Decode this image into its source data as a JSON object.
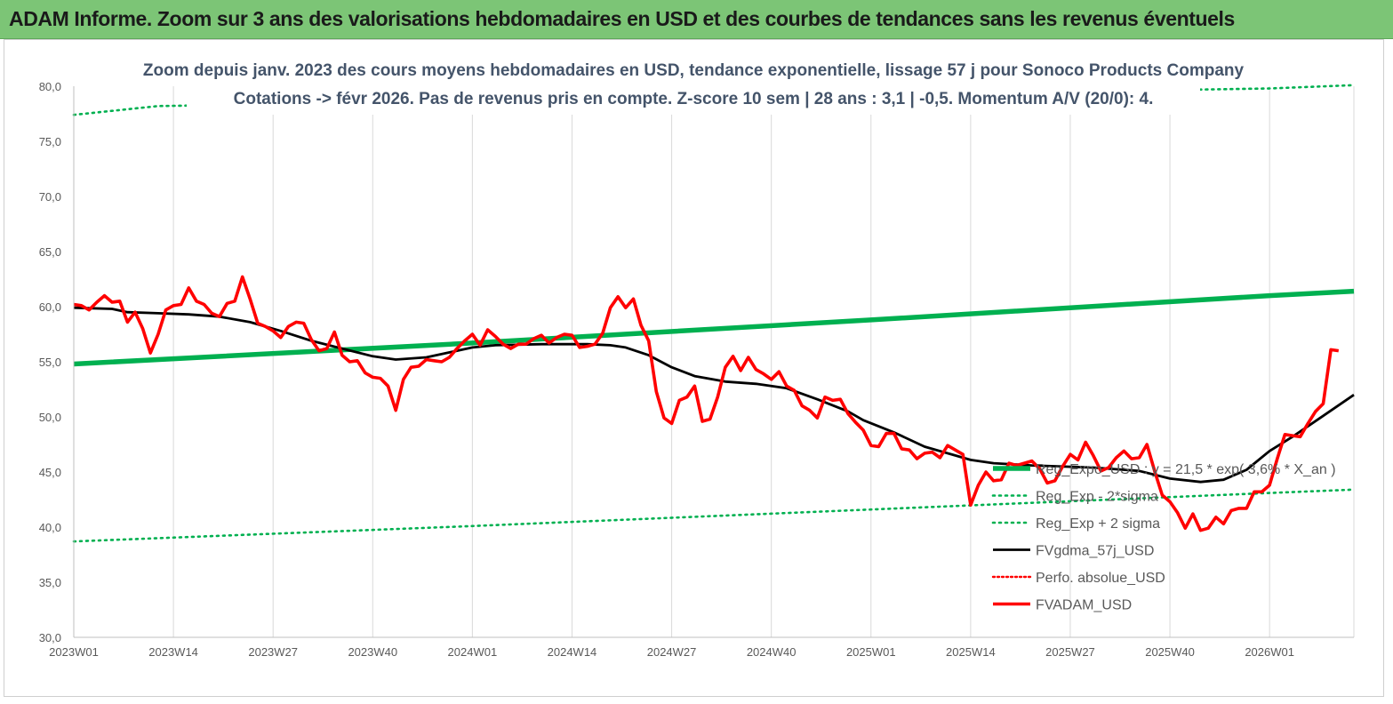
{
  "banner": {
    "title": "ADAM Informe. Zoom sur 3 ans des valorisations hebdomadaires en USD et des courbes de tendances sans les revenus éventuels"
  },
  "colors": {
    "banner": "#7cc576",
    "reg_expo": "#00b050",
    "reg_bands": "#00b050",
    "fvgdma": "#000000",
    "perfo": "#ff0000",
    "fvadam": "#ff0000",
    "grid": "#d9d9d9",
    "title_text": "#44546a"
  },
  "chart_data": {
    "type": "line",
    "title_lines": [
      "Zoom depuis janv. 2023 des cours moyens hebdomadaires en USD, tendance exponentielle, lissage 57 j pour Sonoco Products Company",
      "Cotations -> févr 2026.  Pas de revenus pris en compte. Z-score 10 sem  | 28 ans : 3,1 | -0,5. Momentum A/V (20/0): 4."
    ],
    "x_axis": {
      "unit": "week",
      "first_week": "2023W01",
      "last_week": "2026W12",
      "tick_labels": [
        "2023W01",
        "2023W14",
        "2023W27",
        "2023W40",
        "2024W01",
        "2024W14",
        "2024W27",
        "2024W40",
        "2025W01",
        "2025W14",
        "2025W27",
        "2025W40",
        "2026W01"
      ]
    },
    "y_axis": {
      "min": 30,
      "max": 80,
      "step": 5,
      "tick_labels": [
        "30,0",
        "35,0",
        "40,0",
        "45,0",
        "50,0",
        "55,0",
        "60,0",
        "65,0",
        "70,0",
        "75,0",
        "80,0"
      ]
    },
    "grid": "vertical",
    "legend": {
      "position": "bottom-right",
      "entries": [
        "Reg_Expo_USD : y = 21,5 * exp( 3,6% * X_an )",
        "Reg_Exp - 2*sigma",
        "Reg_Exp + 2 sigma",
        "FVgdma_57j_USD",
        "Perfo. absolue_USD",
        "FVADAM_USD"
      ]
    },
    "series": [
      {
        "name": "Reg_Expo_USD : y = 21,5 * exp( 3,6% * X_an )",
        "style": "thick-solid",
        "points": [
          [
            "2023W01",
            54.8
          ],
          [
            "2024W01",
            56.7
          ],
          [
            "2025W01",
            58.8
          ],
          [
            "2026W01",
            61.0
          ],
          [
            "2026W12",
            61.4
          ]
        ]
      },
      {
        "name": "Reg_Exp - 2*sigma",
        "style": "dotted",
        "points": [
          [
            "2023W01",
            38.7
          ],
          [
            "2024W01",
            40.1
          ],
          [
            "2025W01",
            41.6
          ],
          [
            "2026W01",
            43.1
          ],
          [
            "2026W12",
            43.4
          ]
        ]
      },
      {
        "name": "Reg_Exp + 2 sigma",
        "style": "dotted",
        "points": [
          [
            "2023W01",
            77.4
          ],
          [
            "2023W12",
            78.2
          ],
          [
            "2026W01",
            79.8
          ],
          [
            "2026W12",
            80.1
          ]
        ]
      },
      {
        "name": "FVgdma_57j_USD",
        "style": "solid",
        "points": [
          [
            "2023W01",
            59.9
          ],
          [
            "2023W06",
            59.8
          ],
          [
            "2023W08",
            59.5
          ],
          [
            "2023W12",
            59.4
          ],
          [
            "2023W16",
            59.3
          ],
          [
            "2023W20",
            59.1
          ],
          [
            "2023W24",
            58.6
          ],
          [
            "2023W28",
            57.8
          ],
          [
            "2023W32",
            56.9
          ],
          [
            "2023W36",
            56.2
          ],
          [
            "2023W40",
            55.5
          ],
          [
            "2023W43",
            55.2
          ],
          [
            "2023W47",
            55.4
          ],
          [
            "2023W51",
            56.0
          ],
          [
            "2024W01",
            56.3
          ],
          [
            "2024W04",
            56.5
          ],
          [
            "2024W10",
            56.6
          ],
          [
            "2024W16",
            56.6
          ],
          [
            "2024W19",
            56.5
          ],
          [
            "2024W21",
            56.3
          ],
          [
            "2024W24",
            55.6
          ],
          [
            "2024W27",
            54.5
          ],
          [
            "2024W30",
            53.7
          ],
          [
            "2024W34",
            53.2
          ],
          [
            "2024W38",
            53.0
          ],
          [
            "2024W42",
            52.6
          ],
          [
            "2024W46",
            51.6
          ],
          [
            "2024W50",
            50.5
          ],
          [
            "2024W52",
            49.7
          ],
          [
            "2025W04",
            48.6
          ],
          [
            "2025W08",
            47.3
          ],
          [
            "2025W12",
            46.5
          ],
          [
            "2025W14",
            46.1
          ],
          [
            "2025W17",
            45.8
          ],
          [
            "2025W22",
            45.6
          ],
          [
            "2025W30",
            45.4
          ],
          [
            "2025W36",
            45.1
          ],
          [
            "2025W40",
            44.4
          ],
          [
            "2025W44",
            44.1
          ],
          [
            "2025W47",
            44.3
          ],
          [
            "2025W50",
            45.2
          ],
          [
            "2026W01",
            46.9
          ],
          [
            "2026W04",
            48.2
          ],
          [
            "2026W08",
            50.1
          ],
          [
            "2026W12",
            52.0
          ]
        ]
      },
      {
        "name": "Perfo. absolue_USD",
        "style": "dotted",
        "points": []
      },
      {
        "name": "FVADAM_USD",
        "style": "thick-solid",
        "points": [
          [
            "2023W01",
            60.2
          ],
          [
            "2023W02",
            60.1
          ],
          [
            "2023W03",
            59.7
          ],
          [
            "2023W04",
            60.4
          ],
          [
            "2023W05",
            61.0
          ],
          [
            "2023W06",
            60.4
          ],
          [
            "2023W07",
            60.5
          ],
          [
            "2023W08",
            58.6
          ],
          [
            "2023W09",
            59.5
          ],
          [
            "2023W10",
            58.0
          ],
          [
            "2023W11",
            55.8
          ],
          [
            "2023W12",
            57.5
          ],
          [
            "2023W13",
            59.7
          ],
          [
            "2023W14",
            60.1
          ],
          [
            "2023W15",
            60.2
          ],
          [
            "2023W16",
            61.7
          ],
          [
            "2023W17",
            60.5
          ],
          [
            "2023W18",
            60.2
          ],
          [
            "2023W19",
            59.4
          ],
          [
            "2023W20",
            59.1
          ],
          [
            "2023W21",
            60.3
          ],
          [
            "2023W22",
            60.5
          ],
          [
            "2023W23",
            62.7
          ],
          [
            "2023W24",
            60.7
          ],
          [
            "2023W25",
            58.5
          ],
          [
            "2023W26",
            58.2
          ],
          [
            "2023W27",
            57.8
          ],
          [
            "2023W28",
            57.2
          ],
          [
            "2023W29",
            58.2
          ],
          [
            "2023W30",
            58.6
          ],
          [
            "2023W31",
            58.5
          ],
          [
            "2023W32",
            57.0
          ],
          [
            "2023W33",
            56.0
          ],
          [
            "2023W34",
            56.2
          ],
          [
            "2023W35",
            57.7
          ],
          [
            "2023W36",
            55.6
          ],
          [
            "2023W37",
            55.0
          ],
          [
            "2023W38",
            55.1
          ],
          [
            "2023W39",
            54.0
          ],
          [
            "2023W40",
            53.6
          ],
          [
            "2023W41",
            53.5
          ],
          [
            "2023W42",
            52.8
          ],
          [
            "2023W43",
            50.6
          ],
          [
            "2023W44",
            53.4
          ],
          [
            "2023W45",
            54.5
          ],
          [
            "2023W46",
            54.6
          ],
          [
            "2023W47",
            55.2
          ],
          [
            "2023W48",
            55.1
          ],
          [
            "2023W49",
            55.0
          ],
          [
            "2023W50",
            55.4
          ],
          [
            "2023W51",
            56.2
          ],
          [
            "2023W52",
            56.9
          ],
          [
            "2024W01",
            57.5
          ],
          [
            "2024W02",
            56.5
          ],
          [
            "2024W03",
            57.9
          ],
          [
            "2024W04",
            57.3
          ],
          [
            "2024W05",
            56.6
          ],
          [
            "2024W06",
            56.2
          ],
          [
            "2024W07",
            56.6
          ],
          [
            "2024W08",
            56.6
          ],
          [
            "2024W09",
            57.1
          ],
          [
            "2024W10",
            57.4
          ],
          [
            "2024W11",
            56.7
          ],
          [
            "2024W12",
            57.2
          ],
          [
            "2024W13",
            57.5
          ],
          [
            "2024W14",
            57.4
          ],
          [
            "2024W15",
            56.3
          ],
          [
            "2024W16",
            56.4
          ],
          [
            "2024W17",
            56.6
          ],
          [
            "2024W18",
            57.6
          ],
          [
            "2024W19",
            59.9
          ],
          [
            "2024W20",
            60.9
          ],
          [
            "2024W21",
            59.9
          ],
          [
            "2024W22",
            60.7
          ],
          [
            "2024W23",
            58.3
          ],
          [
            "2024W24",
            56.9
          ],
          [
            "2024W25",
            52.3
          ],
          [
            "2024W26",
            49.9
          ],
          [
            "2024W27",
            49.4
          ],
          [
            "2024W28",
            51.5
          ],
          [
            "2024W29",
            51.8
          ],
          [
            "2024W30",
            52.8
          ],
          [
            "2024W31",
            49.6
          ],
          [
            "2024W32",
            49.8
          ],
          [
            "2024W33",
            51.8
          ],
          [
            "2024W34",
            54.5
          ],
          [
            "2024W35",
            55.5
          ],
          [
            "2024W36",
            54.2
          ],
          [
            "2024W37",
            55.4
          ],
          [
            "2024W38",
            54.3
          ],
          [
            "2024W39",
            53.9
          ],
          [
            "2024W40",
            53.4
          ],
          [
            "2024W41",
            54.1
          ],
          [
            "2024W42",
            52.8
          ],
          [
            "2024W43",
            52.4
          ],
          [
            "2024W44",
            51.0
          ],
          [
            "2024W45",
            50.6
          ],
          [
            "2024W46",
            49.9
          ],
          [
            "2024W47",
            51.8
          ],
          [
            "2024W48",
            51.5
          ],
          [
            "2024W49",
            51.6
          ],
          [
            "2024W50",
            50.3
          ],
          [
            "2024W51",
            49.5
          ],
          [
            "2024W52",
            48.8
          ],
          [
            "2025W01",
            47.4
          ],
          [
            "2025W02",
            47.3
          ],
          [
            "2025W03",
            48.5
          ],
          [
            "2025W04",
            48.5
          ],
          [
            "2025W05",
            47.1
          ],
          [
            "2025W06",
            47.0
          ],
          [
            "2025W07",
            46.2
          ],
          [
            "2025W08",
            46.7
          ],
          [
            "2025W09",
            46.8
          ],
          [
            "2025W10",
            46.3
          ],
          [
            "2025W11",
            47.4
          ],
          [
            "2025W12",
            47.0
          ],
          [
            "2025W13",
            46.6
          ],
          [
            "2025W14",
            42.0
          ],
          [
            "2025W15",
            43.8
          ],
          [
            "2025W16",
            45.0
          ],
          [
            "2025W17",
            44.2
          ],
          [
            "2025W18",
            44.3
          ],
          [
            "2025W19",
            45.8
          ],
          [
            "2025W20",
            45.6
          ],
          [
            "2025W21",
            45.8
          ],
          [
            "2025W22",
            46.0
          ],
          [
            "2025W23",
            45.3
          ],
          [
            "2025W24",
            44.0
          ],
          [
            "2025W25",
            44.2
          ],
          [
            "2025W26",
            45.5
          ],
          [
            "2025W27",
            46.6
          ],
          [
            "2025W28",
            46.1
          ],
          [
            "2025W29",
            47.7
          ],
          [
            "2025W30",
            46.5
          ],
          [
            "2025W31",
            45.1
          ],
          [
            "2025W32",
            45.4
          ],
          [
            "2025W33",
            46.3
          ],
          [
            "2025W34",
            46.9
          ],
          [
            "2025W35",
            46.2
          ],
          [
            "2025W36",
            46.3
          ],
          [
            "2025W37",
            47.5
          ],
          [
            "2025W38",
            45.1
          ],
          [
            "2025W39",
            42.9
          ],
          [
            "2025W40",
            42.3
          ],
          [
            "2025W41",
            41.3
          ],
          [
            "2025W42",
            39.9
          ],
          [
            "2025W43",
            41.2
          ],
          [
            "2025W44",
            39.7
          ],
          [
            "2025W45",
            39.9
          ],
          [
            "2025W46",
            40.9
          ],
          [
            "2025W47",
            40.3
          ],
          [
            "2025W48",
            41.5
          ],
          [
            "2025W49",
            41.7
          ],
          [
            "2025W50",
            41.7
          ],
          [
            "2025W51",
            43.2
          ],
          [
            "2025W52",
            43.2
          ],
          [
            "2026W01",
            43.8
          ],
          [
            "2026W02",
            46.2
          ],
          [
            "2026W03",
            48.4
          ],
          [
            "2026W04",
            48.3
          ],
          [
            "2026W05",
            48.2
          ],
          [
            "2026W06",
            49.4
          ],
          [
            "2026W07",
            50.5
          ],
          [
            "2026W08",
            51.2
          ],
          [
            "2026W09",
            56.1
          ],
          [
            "2026W10",
            56.0
          ]
        ]
      }
    ]
  }
}
